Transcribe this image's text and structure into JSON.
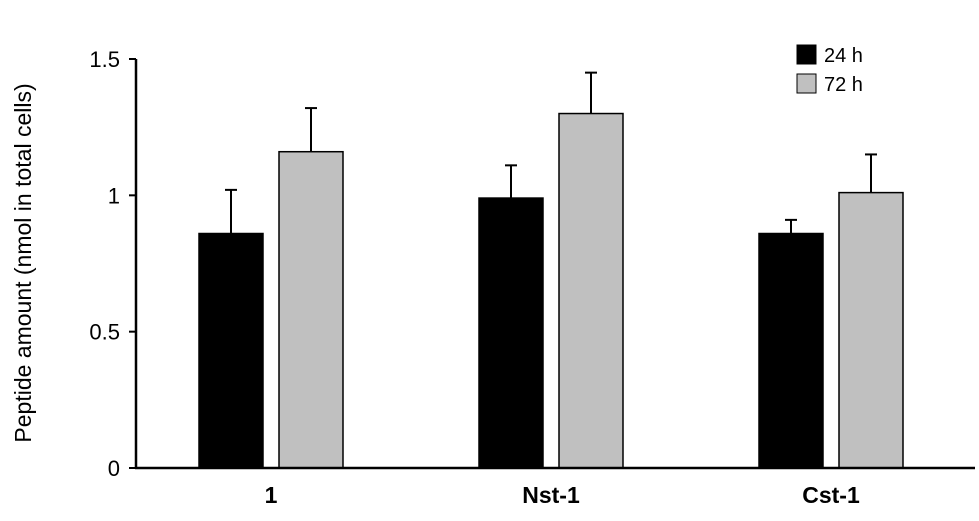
{
  "chart_data": {
    "type": "bar",
    "title": "",
    "xlabel": "",
    "ylabel": "Peptide amount (nmol in total cells)",
    "ylim": [
      0,
      1.5
    ],
    "yticks": [
      0,
      0.5,
      1,
      1.5
    ],
    "ytick_labels": [
      "0",
      "0.5",
      "1",
      "1.5"
    ],
    "categories": [
      "1",
      "Nst-1",
      "Cst-1"
    ],
    "grid": false,
    "legend_position": "top-right",
    "series": [
      {
        "name": "24 h",
        "color": "#000000",
        "values": [
          0.86,
          0.99,
          0.86
        ],
        "errors": [
          0.16,
          0.12,
          0.05
        ]
      },
      {
        "name": "72 h",
        "color": "#c0c0c0",
        "values": [
          1.16,
          1.3,
          1.01
        ],
        "errors": [
          0.16,
          0.15,
          0.14
        ]
      }
    ]
  }
}
